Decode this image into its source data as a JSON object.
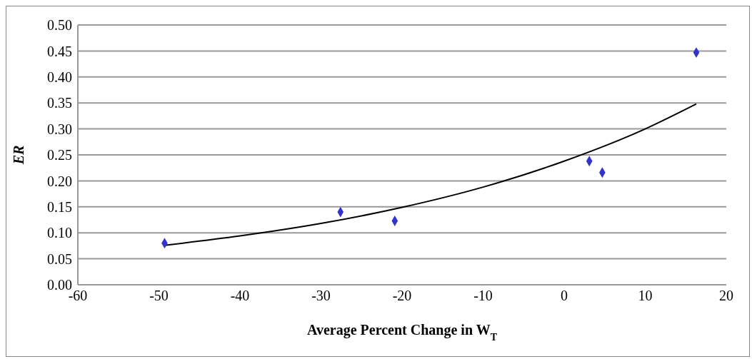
{
  "chart_data": {
    "type": "scatter",
    "xlabel": "Average Percent Change in W$_{T}$",
    "ylabel": "ER",
    "xlim": [
      -60,
      20
    ],
    "xticks": [
      -60,
      -50,
      -40,
      -30,
      -20,
      -10,
      0,
      10,
      20
    ],
    "ylim": [
      0,
      0.5
    ],
    "yticks": [
      {
        "value": 0,
        "label": "0.00"
      },
      {
        "value": 0.05,
        "label": "0.05"
      },
      {
        "value": 0.1,
        "label": "0.10"
      },
      {
        "value": 0.15,
        "label": "0.15"
      },
      {
        "value": 0.2,
        "label": "0.20"
      },
      {
        "value": 0.25,
        "label": "0.25"
      },
      {
        "value": 0.3,
        "label": "0.30"
      },
      {
        "value": 0.35,
        "label": "0.35"
      },
      {
        "value": 0.4,
        "label": "0.40"
      },
      {
        "value": 0.45,
        "label": "0.45"
      },
      {
        "value": 0.5,
        "label": "0.50"
      }
    ],
    "grid": "y",
    "series": [
      {
        "color": "#3333cc",
        "marker": "diamond",
        "x": [
          -49.3,
          -27.6,
          -20.9,
          3.1,
          4.7,
          16.3
        ],
        "values": [
          0.08,
          0.14,
          0.123,
          0.238,
          0.216,
          0.447
        ]
      },
      {
        "type": "line",
        "color": "#000000",
        "marker": "none",
        "line_style": "solid",
        "x": [
          -49.3,
          -40,
          -30,
          -20,
          -10,
          0,
          10,
          16.3
        ],
        "values": [
          0.076,
          0.094,
          0.118,
          0.149,
          0.188,
          0.238,
          0.3,
          0.348
        ]
      }
    ]
  }
}
